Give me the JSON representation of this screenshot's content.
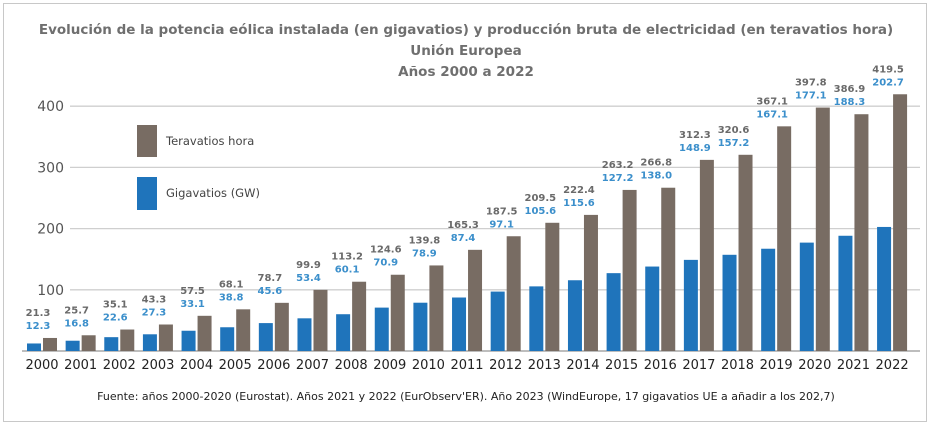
{
  "chart_data": {
    "type": "bar",
    "title": "Evolución de la potencia eólica instalada (en gigavatios) y producción bruta de electricidad (en teravatios hora)",
    "subtitle": "Unión Europea",
    "subtitle2": "Años 2000 a 2022",
    "categories": [
      "2000",
      "2001",
      "2002",
      "2003",
      "2004",
      "2005",
      "2006",
      "2007",
      "2008",
      "2009",
      "2010",
      "2011",
      "2012",
      "2013",
      "2014",
      "2015",
      "2016",
      "2017",
      "2018",
      "2019",
      "2020",
      "2021",
      "2022"
    ],
    "series": [
      {
        "name": "Gigavatios (GW)",
        "color": "#1f74bb",
        "label_color": "#3b8fcb",
        "values": [
          12.3,
          16.8,
          22.6,
          27.3,
          33.1,
          38.8,
          45.6,
          53.4,
          60.1,
          70.9,
          78.9,
          87.4,
          97.1,
          105.6,
          115.6,
          127.2,
          138.0,
          148.9,
          157.2,
          167.1,
          177.1,
          188.3,
          202.7
        ]
      },
      {
        "name": "Teravatios hora",
        "color": "#786c63",
        "label_color": "#6a6a6a",
        "values": [
          21.3,
          25.7,
          35.1,
          43.3,
          57.5,
          68.1,
          78.7,
          99.9,
          113.2,
          124.6,
          139.8,
          165.3,
          187.5,
          209.5,
          222.4,
          263.2,
          266.8,
          312.3,
          320.6,
          367.1,
          397.8,
          386.9,
          419.5
        ]
      }
    ],
    "value_labels": {
      "gw": [
        "12.3",
        "16.8",
        "22.6",
        "27.3",
        "33.1",
        "38.8",
        "45.6",
        "53.4",
        "60.1",
        "70.9",
        "78.9",
        "87.4",
        "97.1",
        "105.6",
        "115.6",
        "127.2",
        "138.0",
        "148.9",
        "157.2",
        "167.1",
        "177.1",
        "188.3",
        "202.7"
      ],
      "twh": [
        "21.3",
        "25.7",
        "35.1",
        "43.3",
        "57.5",
        "68.1",
        "78.7",
        "99.9",
        "113.2",
        "124.6",
        "139.8",
        "165.3",
        "187.5",
        "209.5",
        "222.4",
        "263.2",
        "266.8",
        "312.3",
        "320.6",
        "367.1",
        "397.8",
        "386.9",
        "419.5"
      ]
    },
    "yticks": [
      "100",
      "200",
      "300",
      "400"
    ],
    "ylim": [
      0,
      420
    ],
    "grid": true,
    "legend_position": "top-left",
    "xlabel": "",
    "ylabel": ""
  },
  "footnote": "Fuente: años 2000-2020 (Eurostat). Años 2021 y 2022 (EurObserv'ER). Año 2023 (WindEurope, 17 gigavatios UE a añadir a los 202,7)"
}
